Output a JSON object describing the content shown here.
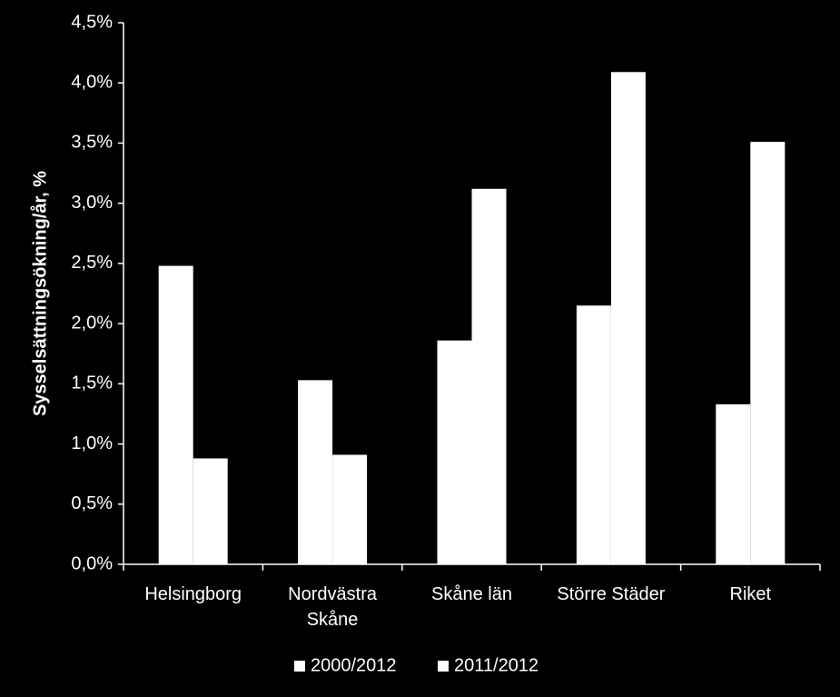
{
  "chart_data": {
    "type": "bar",
    "y_label": "Sysselsättningsökning/år, %",
    "categories": [
      "Helsingborg",
      "Nordvästra Skåne",
      "Skåne län",
      "Större Städer",
      "Riket"
    ],
    "series": [
      {
        "name": "2000/2012",
        "color": "#ffffff",
        "values": [
          2.48,
          1.53,
          1.86,
          2.15,
          1.33
        ]
      },
      {
        "name": "2011/2012",
        "color": "#ffffff",
        "values": [
          0.88,
          0.91,
          3.12,
          4.09,
          3.51
        ]
      }
    ],
    "ylim": [
      0,
      4.5
    ],
    "yticks": [
      {
        "value": 0,
        "label": "0,0%"
      },
      {
        "value": 0.5,
        "label": "0,5%"
      },
      {
        "value": 1,
        "label": "1,0%"
      },
      {
        "value": 1.5,
        "label": "1,5%"
      },
      {
        "value": 2,
        "label": "2,0%"
      },
      {
        "value": 2.5,
        "label": "2,5%"
      },
      {
        "value": 3,
        "label": "3,0%"
      },
      {
        "value": 3.5,
        "label": "3,5%"
      },
      {
        "value": 4,
        "label": "4,0%"
      },
      {
        "value": 4.5,
        "label": "4,5%"
      }
    ],
    "grid": false,
    "legend": "bottom"
  }
}
